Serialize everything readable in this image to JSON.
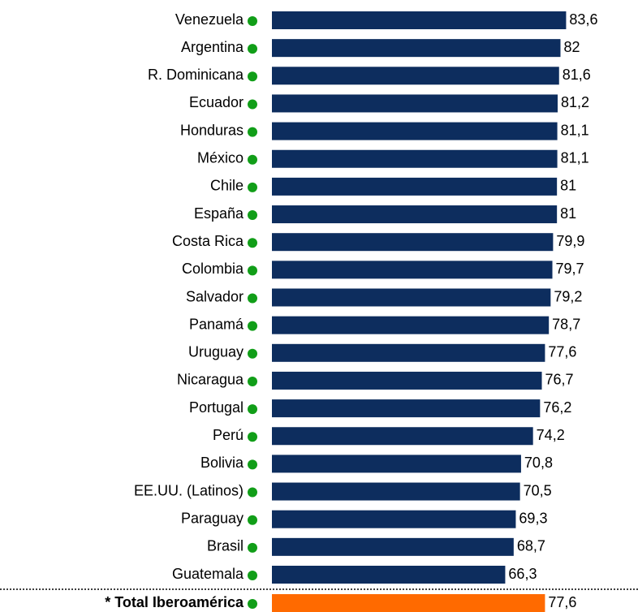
{
  "chart_data": {
    "type": "bar",
    "orientation": "horizontal",
    "categories": [
      "Venezuela",
      "Argentina",
      "R. Dominicana",
      "Ecuador",
      "Honduras",
      "México",
      "Chile",
      "España",
      "Costa Rica",
      "Colombia",
      "Salvador",
      "Panamá",
      "Uruguay",
      "Nicaragua",
      "Portugal",
      "Perú",
      "Bolivia",
      "EE.UU. (Latinos)",
      "Paraguay",
      "Brasil",
      "Guatemala",
      "* Total Iberoamérica"
    ],
    "values": [
      83.6,
      82,
      81.6,
      81.2,
      81.1,
      81.1,
      81,
      81,
      79.9,
      79.7,
      79.2,
      78.7,
      77.6,
      76.7,
      76.2,
      74.2,
      70.8,
      70.5,
      69.3,
      68.7,
      66.3,
      77.6
    ],
    "value_labels": [
      "83,6",
      "82",
      "81,6",
      "81,2",
      "81,1",
      "81,1",
      "81",
      "81",
      "79,9",
      "79,7",
      "79,2",
      "78,7",
      "77,6",
      "76,7",
      "76,2",
      "74,2",
      "70,8",
      "70,5",
      "69,3",
      "68,7",
      "66,3",
      "77,6"
    ],
    "colors": [
      "#0d2d5e",
      "#0d2d5e",
      "#0d2d5e",
      "#0d2d5e",
      "#0d2d5e",
      "#0d2d5e",
      "#0d2d5e",
      "#0d2d5e",
      "#0d2d5e",
      "#0d2d5e",
      "#0d2d5e",
      "#0d2d5e",
      "#0d2d5e",
      "#0d2d5e",
      "#0d2d5e",
      "#0d2d5e",
      "#0d2d5e",
      "#0d2d5e",
      "#0d2d5e",
      "#0d2d5e",
      "#0d2d5e",
      "#ff6a00"
    ],
    "xlim": [
      0,
      86.5
    ]
  }
}
